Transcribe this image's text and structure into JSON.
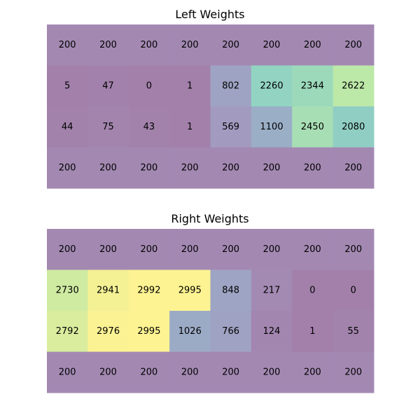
{
  "chart_data": [
    {
      "type": "heatmap",
      "title": "Left Weights",
      "rows": 4,
      "cols": 8,
      "values": [
        [
          200,
          200,
          200,
          200,
          200,
          200,
          200,
          200
        ],
        [
          5,
          47,
          0,
          1,
          802,
          2260,
          2344,
          2622
        ],
        [
          44,
          75,
          43,
          1,
          569,
          1100,
          2450,
          2080
        ],
        [
          200,
          200,
          200,
          200,
          200,
          200,
          200,
          200
        ]
      ],
      "colormap": "viridis",
      "alpha": 0.5,
      "vmin": 0,
      "vmax": 3000,
      "grid": false
    },
    {
      "type": "heatmap",
      "title": "Right Weights",
      "rows": 4,
      "cols": 8,
      "values": [
        [
          200,
          200,
          200,
          200,
          200,
          200,
          200,
          200
        ],
        [
          2730,
          2941,
          2992,
          2995,
          848,
          217,
          0,
          0
        ],
        [
          2792,
          2976,
          2995,
          1026,
          766,
          124,
          1,
          55
        ],
        [
          200,
          200,
          200,
          200,
          200,
          200,
          200,
          200
        ]
      ],
      "colormap": "viridis",
      "alpha": 0.5,
      "vmin": 0,
      "vmax": 3000,
      "grid": false
    }
  ]
}
